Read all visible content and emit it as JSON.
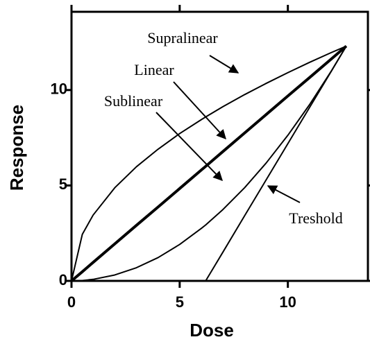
{
  "chart_data": {
    "type": "line",
    "x_label": "Dose",
    "y_label": "Response",
    "x": [
      0,
      0.5,
      1,
      2,
      3,
      4,
      5,
      6,
      6.2,
      7,
      8,
      9,
      10,
      11,
      12,
      12.7
    ],
    "series": [
      {
        "name": "Supralinear",
        "color": "#000000",
        "width": 2,
        "values": [
          0,
          2.44,
          3.45,
          4.88,
          5.98,
          6.9,
          7.72,
          8.45,
          8.59,
          9.13,
          9.76,
          10.35,
          10.91,
          11.45,
          11.96,
          12.3
        ]
      },
      {
        "name": "Linear",
        "color": "#000000",
        "width": 4,
        "values": [
          0,
          0.48,
          0.97,
          1.94,
          2.91,
          3.87,
          4.84,
          5.81,
          6.0,
          6.78,
          7.75,
          8.72,
          9.69,
          10.65,
          11.62,
          12.3
        ]
      },
      {
        "name": "Sublinear",
        "color": "#000000",
        "width": 2,
        "values": [
          0,
          0.02,
          0.08,
          0.31,
          0.69,
          1.22,
          1.91,
          2.75,
          2.93,
          3.74,
          4.88,
          6.18,
          7.63,
          9.23,
          10.98,
          12.3
        ]
      },
      {
        "name": "Treshold",
        "color": "#000000",
        "width": 2,
        "values": [
          null,
          null,
          null,
          null,
          null,
          null,
          null,
          null,
          0,
          1.51,
          3.41,
          5.3,
          7.19,
          9.08,
          10.97,
          12.3
        ]
      }
    ],
    "xlim": [
      0,
      13.7
    ],
    "ylim": [
      0,
      14.1
    ],
    "xticks": [
      0,
      5,
      10
    ],
    "yticks": [
      0,
      5,
      10
    ]
  }
}
